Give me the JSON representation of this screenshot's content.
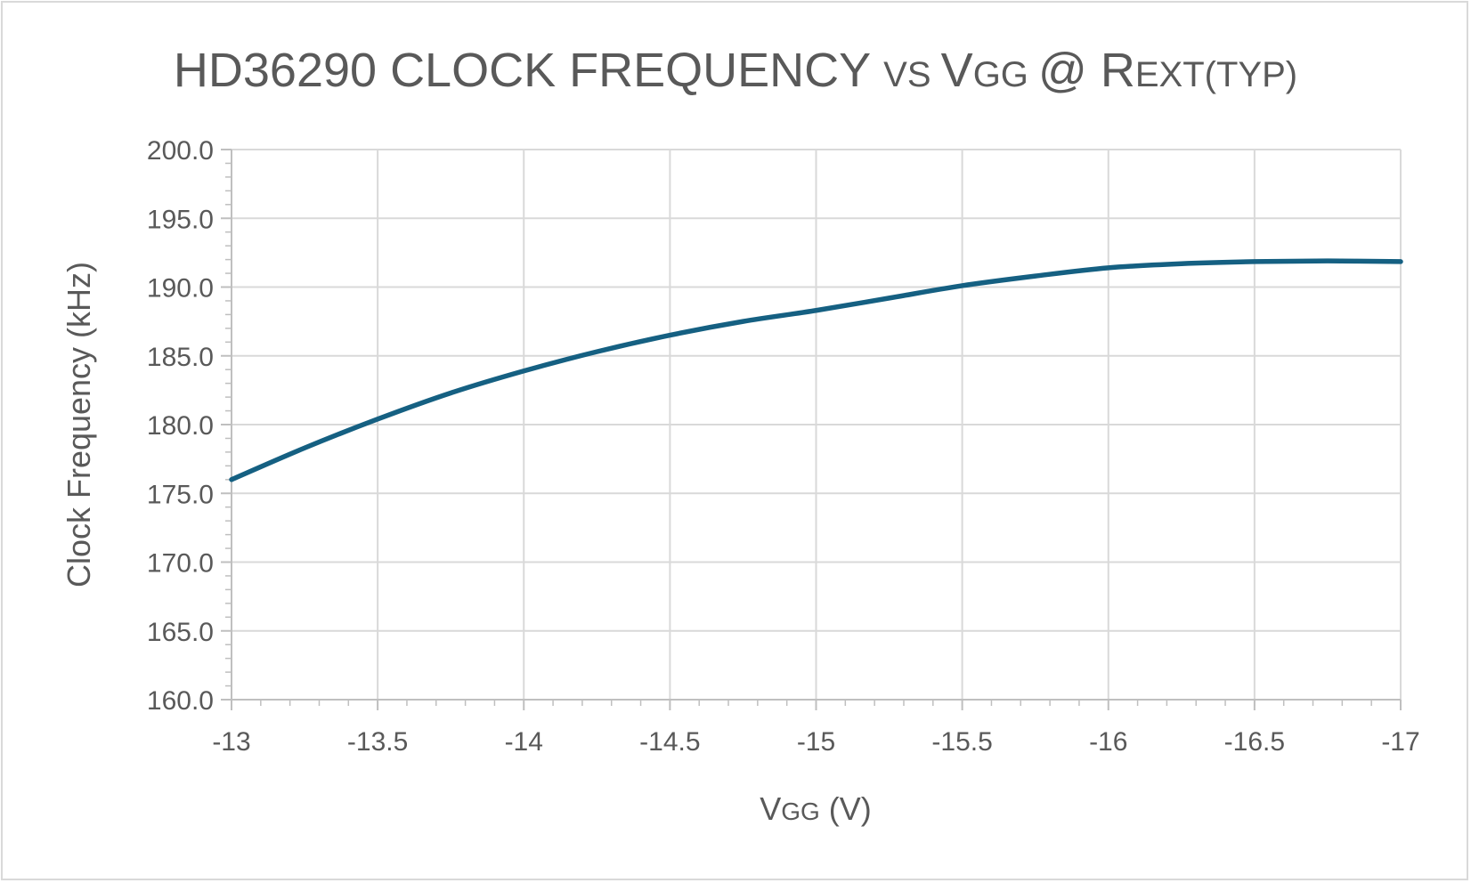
{
  "chart_data": {
    "type": "line",
    "title_parts": [
      {
        "text": "HD36290 CLOCK FREQUENCY ",
        "size": "large"
      },
      {
        "text": "VS ",
        "size": "small"
      },
      {
        "text": "V",
        "size": "large"
      },
      {
        "text": "GG ",
        "size": "small"
      },
      {
        "text": "@ R",
        "size": "large"
      },
      {
        "text": "EXT(TYP)",
        "size": "small"
      }
    ],
    "xlabel_parts": [
      {
        "text": "V",
        "size": "large"
      },
      {
        "text": "GG",
        "size": "small"
      },
      {
        "text": " (V)",
        "size": "large"
      }
    ],
    "ylabel": "Clock Frequency (kHz)",
    "xlim": [
      -13,
      -17
    ],
    "ylim": [
      160,
      200
    ],
    "x_ticks": [
      -13,
      -13.5,
      -14,
      -14.5,
      -15,
      -15.5,
      -16,
      -16.5,
      -17
    ],
    "x_tick_labels": [
      "-13",
      "-13.5",
      "-14",
      "-14.5",
      "-15",
      "-15.5",
      "-16",
      "-16.5",
      "-17"
    ],
    "y_ticks": [
      160,
      165,
      170,
      175,
      180,
      185,
      190,
      195,
      200
    ],
    "y_tick_labels": [
      "160.0",
      "165.0",
      "170.0",
      "175.0",
      "180.0",
      "185.0",
      "190.0",
      "195.0",
      "200.0"
    ],
    "grid": true,
    "series": [
      {
        "name": "Clock Frequency",
        "color": "#156082",
        "x": [
          -13,
          -13.25,
          -13.5,
          -13.75,
          -14,
          -14.25,
          -14.5,
          -14.75,
          -15,
          -15.25,
          -15.5,
          -15.75,
          -16,
          -16.25,
          -16.5,
          -16.75,
          -17
        ],
        "y": [
          176.0,
          178.3,
          180.4,
          182.3,
          183.9,
          185.3,
          186.5,
          187.5,
          188.3,
          189.2,
          190.1,
          190.8,
          191.4,
          191.7,
          191.85,
          191.9,
          191.85
        ]
      }
    ]
  }
}
